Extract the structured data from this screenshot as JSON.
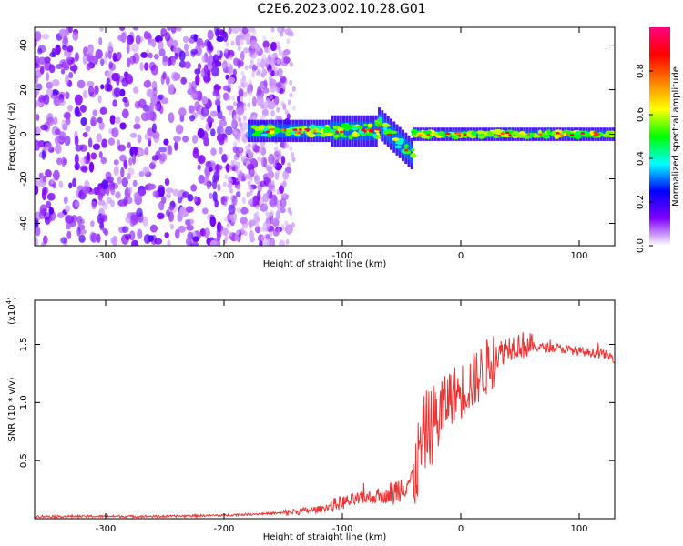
{
  "title": "C2E6.2023.002.10.28.G01",
  "chart_data": [
    {
      "type": "heatmap",
      "xlabel": "Height of straight line (km)",
      "ylabel": "Frequency (Hz)",
      "xlim": [
        -360,
        130
      ],
      "ylim": [
        -50,
        48
      ],
      "xticks": [
        -300,
        -200,
        -100,
        0,
        100
      ],
      "yticks": [
        -40,
        -20,
        0,
        20,
        40
      ],
      "colorbar": {
        "label": "Normalized spectral amplitude",
        "range": [
          0.0,
          1.0
        ],
        "ticks": [
          "0.0",
          "0.2",
          "0.4",
          "0.6",
          "0.8"
        ],
        "colormap": [
          "#ffffff",
          "#8000ff",
          "#0000ff",
          "#00ffff",
          "#00ff00",
          "#ffff00",
          "#ff8000",
          "#ff0000",
          "#ff0080"
        ]
      },
      "regions": [
        {
          "x": [
            -360,
            -150
          ],
          "description_value": 0.25
        },
        {
          "x": [
            -180,
            130
          ],
          "band_center_hz": 0,
          "band_halfwidth_hz": 4,
          "peak_value": 0.9
        }
      ]
    },
    {
      "type": "line",
      "xlabel": "Height of straight line (km)",
      "ylabel": "SNR (10 * v/v)",
      "y_multiplier": "(x10",
      "y_multiplier_exp": "4",
      "y_multiplier_close": ")",
      "xlim": [
        -360,
        130
      ],
      "ylim": [
        0.0,
        1.88
      ],
      "xticks": [
        -300,
        -200,
        -100,
        0,
        100
      ],
      "yticks": [
        0.5,
        1.0,
        1.5
      ],
      "ytick_labels": [
        "0.5",
        "1.0",
        "1.5"
      ],
      "series": [
        {
          "color": "#ee3333",
          "x": [
            -360,
            -300,
            -250,
            -200,
            -150,
            -120,
            -100,
            -80,
            -60,
            -40,
            -30,
            -20,
            -10,
            0,
            10,
            20,
            30,
            40,
            50,
            60,
            80,
            100,
            120,
            130
          ],
          "y": [
            0.02,
            0.02,
            0.02,
            0.03,
            0.05,
            0.08,
            0.14,
            0.18,
            0.2,
            0.35,
            0.75,
            0.85,
            1.05,
            1.1,
            1.18,
            1.28,
            1.4,
            1.48,
            1.5,
            1.48,
            1.47,
            1.44,
            1.42,
            1.38
          ]
        }
      ]
    }
  ]
}
